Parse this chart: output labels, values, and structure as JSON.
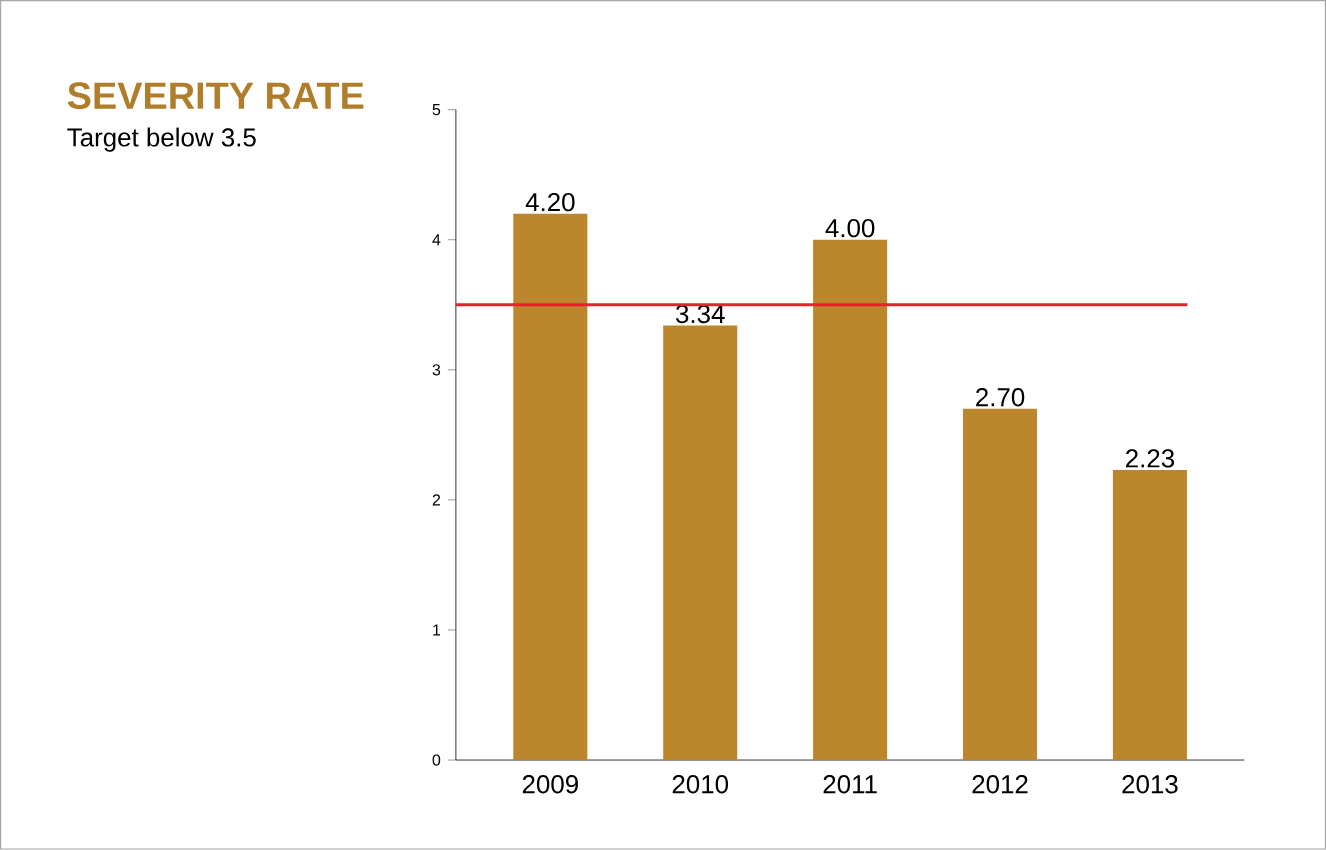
{
  "chart_data": {
    "type": "bar",
    "title": "SEVERITY RATE",
    "subtitle": "Target below 3.5",
    "categories": [
      "2009",
      "2010",
      "2011",
      "2012",
      "2013"
    ],
    "values": [
      4.2,
      3.34,
      4.0,
      2.7,
      2.23
    ],
    "color": "#bb862c",
    "ylim": [
      0,
      5
    ],
    "yticks": [
      0,
      1,
      2,
      3,
      4,
      5
    ],
    "value_labels": [
      "4.20",
      "3.34",
      "4.00",
      "2.70",
      "2.23"
    ],
    "ref_lines": [
      {
        "axis": "y",
        "value": 3.5,
        "color": "#e8212b"
      }
    ]
  }
}
